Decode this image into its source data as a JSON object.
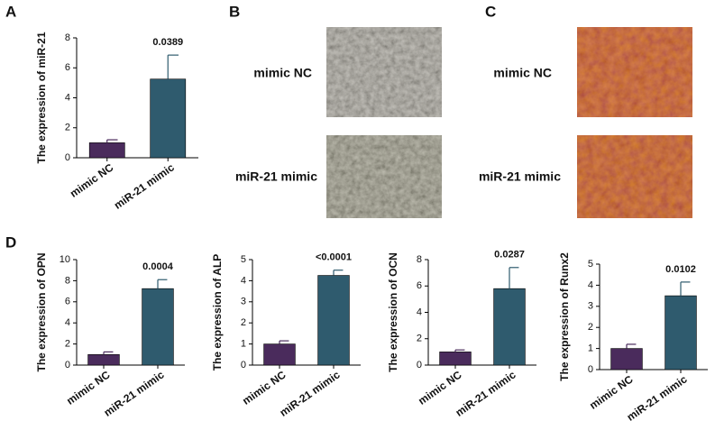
{
  "figure": {
    "panel_labels": [
      "A",
      "B",
      "C",
      "D"
    ]
  },
  "images": [
    {
      "rows": [
        "mimic NC",
        "miR-21 mimic"
      ]
    },
    {
      "rows": [
        "mimic NC",
        "miR-21 mimic"
      ]
    }
  ],
  "chart_data": [
    {
      "type": "bar",
      "y_label": "The expression of miR-21",
      "categories": [
        "mimic NC",
        "miR-21 mimic"
      ],
      "values": [
        1,
        5.25
      ],
      "errors": [
        0.2,
        1.6
      ],
      "colors": [
        "#4a2b5c",
        "#2f5b6e"
      ],
      "annotation": "0.0389",
      "ylim": [
        0,
        8
      ],
      "yticks": [
        0,
        2,
        4,
        6,
        8
      ]
    },
    {
      "type": "bar",
      "y_label": "The expression of OPN",
      "categories": [
        "mimic NC",
        "miR-21 mimic"
      ],
      "values": [
        1,
        7.25
      ],
      "errors": [
        0.25,
        0.85
      ],
      "colors": [
        "#4a2b5c",
        "#2f5b6e"
      ],
      "annotation": "0.0004",
      "ylim": [
        0,
        10
      ],
      "yticks": [
        0,
        2,
        4,
        6,
        8,
        10
      ]
    },
    {
      "type": "bar",
      "y_label": "The expression of ALP",
      "categories": [
        "mimic NC",
        "miR-21 mimic"
      ],
      "values": [
        1,
        4.25
      ],
      "errors": [
        0.15,
        0.25
      ],
      "colors": [
        "#4a2b5c",
        "#2f5b6e"
      ],
      "annotation": "<0.0001",
      "ylim": [
        0,
        5
      ],
      "yticks": [
        0,
        1,
        2,
        3,
        4,
        5
      ]
    },
    {
      "type": "bar",
      "y_label": "The expression of OCN",
      "categories": [
        "mimic NC",
        "miR-21 mimic"
      ],
      "values": [
        1,
        5.8
      ],
      "errors": [
        0.15,
        1.6
      ],
      "colors": [
        "#4a2b5c",
        "#2f5b6e"
      ],
      "annotation": "0.0287",
      "ylim": [
        0,
        8
      ],
      "yticks": [
        0,
        2,
        4,
        6,
        8
      ]
    },
    {
      "type": "bar",
      "y_label": "The expression of Runx2",
      "categories": [
        "mimic NC",
        "miR-21 mimic"
      ],
      "values": [
        1,
        3.5
      ],
      "errors": [
        0.2,
        0.65
      ],
      "colors": [
        "#4a2b5c",
        "#2f5b6e"
      ],
      "annotation": "0.0102",
      "ylim": [
        0,
        5
      ],
      "yticks": [
        0,
        1,
        2,
        3,
        4,
        5
      ]
    }
  ]
}
